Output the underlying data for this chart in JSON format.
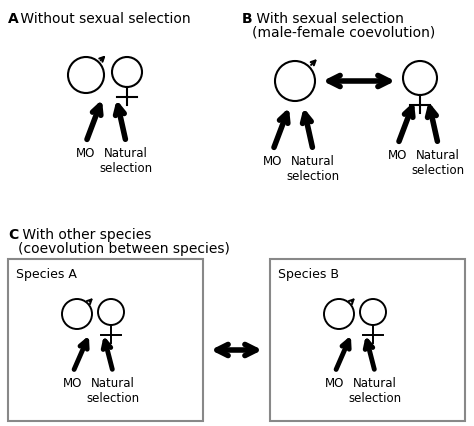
{
  "title_A_bold": "A",
  "title_A_normal": " Without sexual selection",
  "title_B_bold": "B",
  "title_B_line1": " With sexual selection",
  "title_B_line2": "(male-female coevolution)",
  "title_C_bold": "C",
  "title_C_line1": " With other species",
  "title_C_line2": "(coevolution between species)",
  "label_species_A": "Species A",
  "label_species_B": "Species B",
  "label_MO": "MO",
  "label_nat": "Natural\nselection",
  "bg_color": "#ffffff",
  "text_color": "#000000",
  "fig_width": 4.74,
  "fig_height": 4.27,
  "dpi": 100
}
